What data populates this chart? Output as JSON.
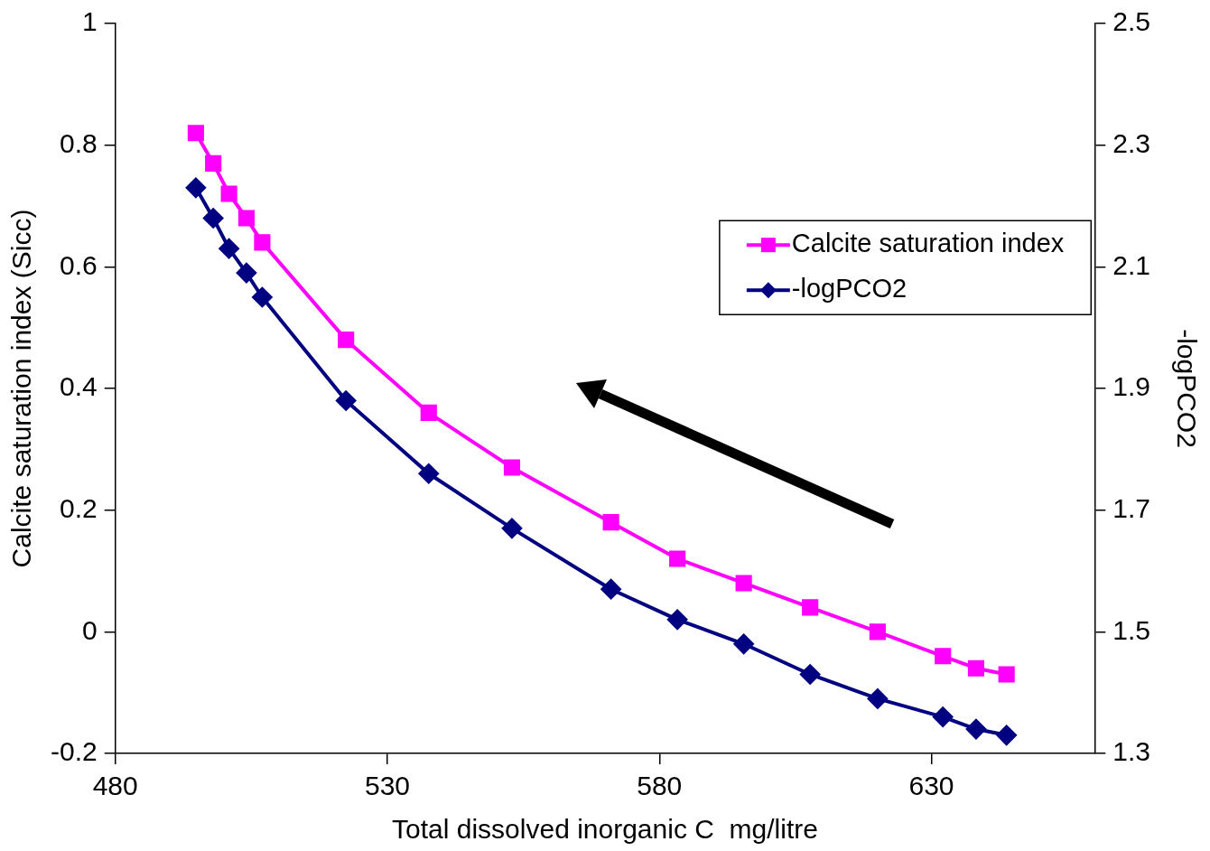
{
  "chart_data": {
    "type": "line",
    "xlabel": "Total dissolved inorganic C  mg/litre",
    "ylabel": "Calcite saturation index (Sicc)",
    "y2label": "-logPCO2",
    "x": [
      494.8,
      498.0,
      500.9,
      504.1,
      507.0,
      522.4,
      537.6,
      552.9,
      571.1,
      583.3,
      595.5,
      607.7,
      620.1,
      632.1,
      638.2,
      643.8
    ],
    "series": [
      {
        "name": "Calcite saturation index",
        "color": "#ff00ff",
        "marker": "square",
        "values": [
          0.82,
          0.77,
          0.72,
          0.68,
          0.64,
          0.48,
          0.36,
          0.27,
          0.18,
          0.12,
          0.08,
          0.04,
          0.0,
          -0.04,
          -0.06,
          -0.07
        ]
      },
      {
        "name": "-logPCO2",
        "color": "#000080",
        "marker": "diamond",
        "axis": "y2",
        "values": [
          2.23,
          2.18,
          2.13,
          2.09,
          2.05,
          1.88,
          1.76,
          1.67,
          1.57,
          1.52,
          1.48,
          1.43,
          1.39,
          1.36,
          1.34,
          1.33
        ]
      }
    ],
    "xlim": [
      480,
      660
    ],
    "xticks": [
      480,
      530,
      580,
      630
    ],
    "ylim": [
      -0.2,
      1
    ],
    "yticks": [
      -0.2,
      0,
      0.2,
      0.4,
      0.6,
      0.8,
      1
    ],
    "y2lim": [
      1.3,
      2.5
    ],
    "y2ticks": [
      1.3,
      1.5,
      1.7,
      1.9,
      2.1,
      2.3,
      2.5
    ],
    "legend": "top right",
    "grid": false
  }
}
